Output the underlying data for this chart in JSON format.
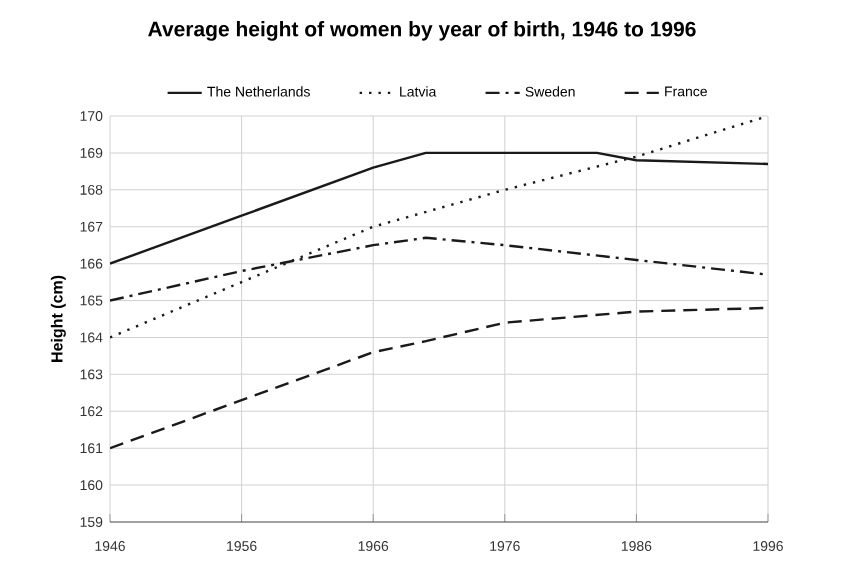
{
  "chart_data": {
    "type": "line",
    "title": "Average height of women by year of birth, 1946 to 1996",
    "ylabel": "Height (cm)",
    "xlim": [
      1946,
      1996
    ],
    "xticks": [
      1946,
      1956,
      1966,
      1976,
      1986,
      1996
    ],
    "ylim": [
      159,
      170
    ],
    "yticks": [
      159,
      160,
      161,
      162,
      163,
      164,
      165,
      166,
      167,
      168,
      169,
      170
    ],
    "grid": true,
    "legend": "top",
    "marker": "none",
    "series": [
      {
        "name": "The Netherlands",
        "color": "#1a1a1a",
        "line_style": "solid",
        "x": [
          1946,
          1956,
          1966,
          1970,
          1983,
          1986,
          1996
        ],
        "values": [
          166,
          167.3,
          168.6,
          169,
          169,
          168.8,
          168.7
        ]
      },
      {
        "name": "Latvia",
        "color": "#1a1a1a",
        "line_style": "dotted",
        "x": [
          1946,
          1956,
          1966,
          1976,
          1986,
          1996
        ],
        "values": [
          164,
          165.5,
          167,
          168,
          168.9,
          170
        ]
      },
      {
        "name": "Sweden",
        "color": "#1a1a1a",
        "line_style": "dashdotted",
        "x": [
          1946,
          1956,
          1966,
          1970,
          1976,
          1986,
          1996
        ],
        "values": [
          165,
          165.8,
          166.5,
          166.7,
          166.5,
          166.1,
          165.7
        ]
      },
      {
        "name": "France",
        "color": "#1a1a1a",
        "line_style": "dashed",
        "x": [
          1946,
          1956,
          1966,
          1970,
          1976,
          1986,
          1996
        ],
        "values": [
          161,
          162.3,
          163.6,
          163.9,
          164.4,
          164.7,
          164.8
        ]
      }
    ]
  }
}
